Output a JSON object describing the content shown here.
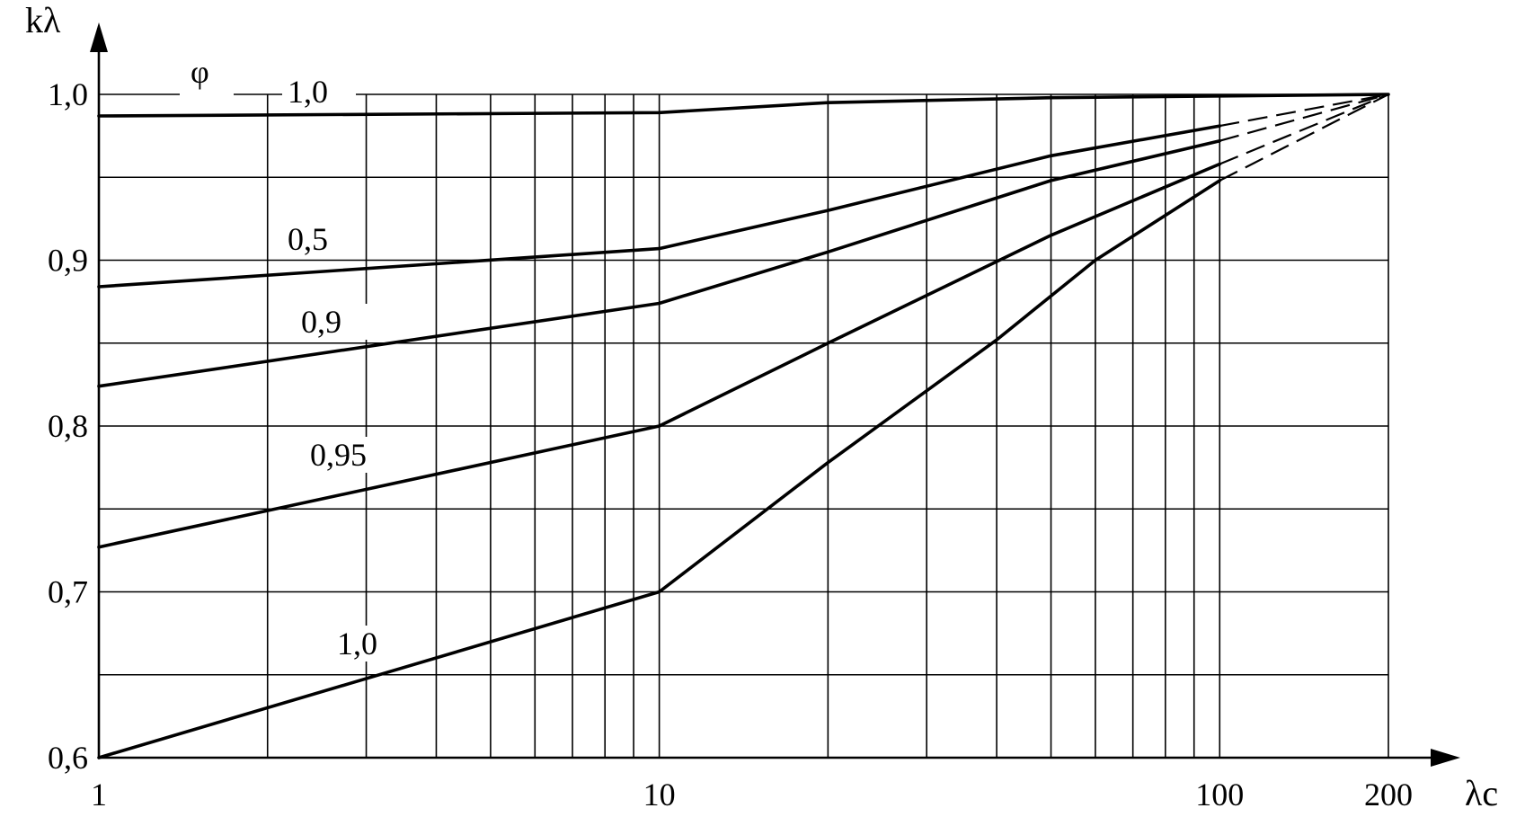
{
  "chart_data": {
    "type": "line",
    "x_scale": "log",
    "xlim": [
      1,
      200
    ],
    "ylim": [
      0.6,
      1.0
    ],
    "grid": true,
    "xlabel": "λc",
    "ylabel": "kλ",
    "legend_title": "φ",
    "x_tick_labels": [
      {
        "value": 1,
        "label": "1"
      },
      {
        "value": 10,
        "label": "10"
      },
      {
        "value": 100,
        "label": "100"
      },
      {
        "value": 200,
        "label": "200"
      }
    ],
    "y_tick_labels": [
      {
        "value": 0.6,
        "label": "0,6"
      },
      {
        "value": 0.7,
        "label": "0,7"
      },
      {
        "value": 0.8,
        "label": "0,8"
      },
      {
        "value": 0.9,
        "label": "0,9"
      },
      {
        "value": 1.0,
        "label": "1,0"
      }
    ],
    "x_grid": [
      1,
      2,
      3,
      4,
      5,
      6,
      7,
      8,
      9,
      10,
      20,
      30,
      40,
      50,
      60,
      70,
      80,
      90,
      100,
      200
    ],
    "y_grid": [
      0.6,
      0.65,
      0.7,
      0.75,
      0.8,
      0.85,
      0.9,
      0.95,
      1.0
    ],
    "series": [
      {
        "name": "1,0",
        "solid": [
          [
            1,
            0.987
          ],
          [
            10,
            0.989
          ],
          [
            20,
            0.995
          ],
          [
            50,
            0.998
          ],
          [
            200,
            1.0
          ]
        ],
        "dashed": []
      },
      {
        "name": "0,5",
        "solid": [
          [
            1,
            0.884
          ],
          [
            10,
            0.907
          ],
          [
            20,
            0.93
          ],
          [
            50,
            0.963
          ],
          [
            100,
            0.981
          ]
        ],
        "dashed": [
          [
            100,
            0.981
          ],
          [
            200,
            1.0
          ]
        ]
      },
      {
        "name": "0,9",
        "solid": [
          [
            1,
            0.824
          ],
          [
            10,
            0.874
          ],
          [
            20,
            0.905
          ],
          [
            50,
            0.948
          ],
          [
            100,
            0.972
          ]
        ],
        "dashed": [
          [
            100,
            0.972
          ],
          [
            200,
            1.0
          ]
        ]
      },
      {
        "name": "0,95",
        "solid": [
          [
            1,
            0.727
          ],
          [
            10,
            0.8
          ],
          [
            20,
            0.85
          ],
          [
            50,
            0.915
          ],
          [
            100,
            0.958
          ]
        ],
        "dashed": [
          [
            100,
            0.958
          ],
          [
            200,
            1.0
          ]
        ]
      },
      {
        "name": "1,0",
        "solid": [
          [
            1,
            0.6
          ],
          [
            10,
            0.7
          ],
          [
            20,
            0.778
          ],
          [
            40,
            0.852
          ],
          [
            60,
            0.9
          ],
          [
            100,
            0.948
          ]
        ],
        "dashed": [
          [
            100,
            0.948
          ],
          [
            200,
            1.0
          ]
        ]
      }
    ]
  }
}
